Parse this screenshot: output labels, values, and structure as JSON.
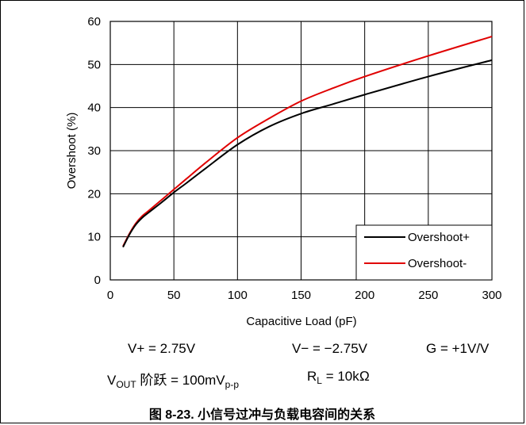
{
  "chart_data": {
    "type": "line",
    "xlabel": "Capacitive Load (pF)",
    "ylabel": "Overshoot (%)",
    "xlim": [
      0,
      300
    ],
    "ylim": [
      0,
      60
    ],
    "xticks": [
      0,
      50,
      100,
      150,
      200,
      250,
      300
    ],
    "yticks": [
      0,
      10,
      20,
      30,
      40,
      50,
      60
    ],
    "grid": true,
    "legend_position": "bottom-right",
    "series": [
      {
        "name": "Overshoot+",
        "color": "#000000",
        "x": [
          10,
          15,
          20,
          25,
          30,
          40,
          50,
          60,
          75,
          100,
          125,
          150,
          175,
          200,
          250,
          300
        ],
        "y": [
          7.6,
          10.5,
          12.8,
          14.4,
          15.6,
          17.9,
          20.3,
          22.5,
          25.9,
          31.4,
          35.6,
          38.6,
          40.8,
          43.0,
          47.2,
          51.0
        ]
      },
      {
        "name": "Overshoot-",
        "color": "#e00000",
        "x": [
          10,
          15,
          20,
          25,
          30,
          40,
          50,
          60,
          75,
          100,
          125,
          150,
          175,
          200,
          250,
          300
        ],
        "y": [
          7.8,
          10.7,
          13.1,
          14.8,
          16.0,
          18.5,
          21.0,
          23.5,
          27.2,
          33.0,
          37.5,
          41.5,
          44.5,
          47.2,
          52.0,
          56.5
        ]
      }
    ]
  },
  "conditions": {
    "vplus": "V+ = 2.75V",
    "vminus": "V− = −2.75V",
    "gain": "G = +1V/V",
    "vout_main": "V",
    "vout_sub": "OUT",
    "step_text": " 阶跃 = 100mV",
    "step_sub": "p-p",
    "rl_main": "R",
    "rl_sub": "L",
    "rl_val": " = 10kΩ"
  },
  "caption": "图 8-23. 小信号过冲与负载电容间的关系"
}
